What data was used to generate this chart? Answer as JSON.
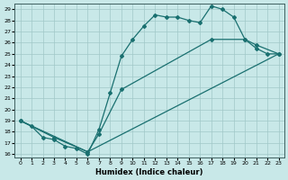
{
  "xlabel": "Humidex (Indice chaleur)",
  "background_color": "#c8e8e8",
  "grid_color": "#a0c8c8",
  "line_color": "#1a7070",
  "xlim_min": -0.5,
  "xlim_max": 23.5,
  "ylim_min": 15.7,
  "ylim_max": 29.5,
  "xticks": [
    0,
    1,
    2,
    3,
    4,
    5,
    6,
    7,
    8,
    9,
    10,
    11,
    12,
    13,
    14,
    15,
    16,
    17,
    18,
    19,
    20,
    21,
    22,
    23
  ],
  "yticks": [
    16,
    17,
    18,
    19,
    20,
    21,
    22,
    23,
    24,
    25,
    26,
    27,
    28,
    29
  ],
  "line1_x": [
    0,
    1,
    2,
    3,
    4,
    5,
    6,
    7,
    8,
    9,
    10,
    11,
    12,
    13,
    14,
    15,
    16,
    17,
    18,
    19,
    20,
    21,
    22,
    23
  ],
  "line1_y": [
    19.0,
    18.5,
    17.5,
    17.3,
    16.7,
    16.5,
    16.0,
    18.2,
    21.5,
    24.8,
    26.3,
    27.5,
    28.5,
    28.3,
    28.3,
    28.0,
    27.8,
    29.3,
    29.0,
    28.3,
    26.3,
    25.5,
    25.0,
    25.0
  ],
  "line2_x": [
    0,
    3,
    6,
    7,
    9,
    17,
    20,
    21,
    23
  ],
  "line2_y": [
    19.0,
    17.5,
    16.2,
    17.8,
    21.8,
    26.3,
    26.3,
    25.8,
    25.0
  ],
  "line3_x": [
    0,
    6,
    23
  ],
  "line3_y": [
    19.0,
    16.2,
    25.0
  ]
}
